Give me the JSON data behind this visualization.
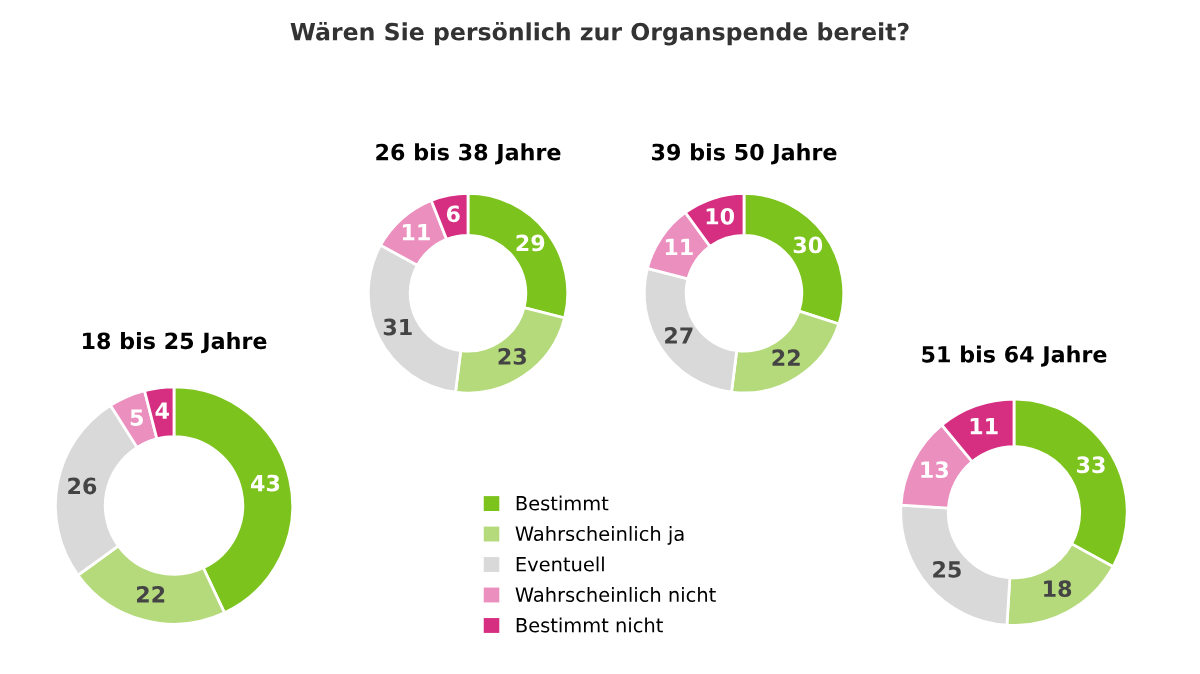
{
  "chart_data": [
    {
      "type": "donut",
      "title": "18 bis 25 Jahre",
      "annotations": [
        "Wären Sie persönlich zur Organspende bereit?"
      ],
      "legend": "bottom",
      "data_labels": true,
      "categories": [
        "Bestimmt",
        "Wahrscheinlich ja",
        "Eventuell",
        "Wahrscheinlich nicht",
        "Bestimmt nicht"
      ],
      "values": [
        43,
        22,
        26,
        5,
        4
      ],
      "colors": [
        "#7dc31e",
        "#b5da7c",
        "#d9d9d9",
        "#eb8fbf",
        "#d62f82"
      ]
    },
    {
      "type": "donut",
      "title": "26 bis 38 Jahre",
      "data_labels": true,
      "values": [
        29,
        23,
        31,
        11,
        6
      ],
      "colors": [
        "#7dc31e",
        "#b5da7c",
        "#d9d9d9",
        "#eb8fbf",
        "#d62f82"
      ]
    },
    {
      "type": "donut",
      "title": "39 bis 50 Jahre",
      "data_labels": true,
      "values": [
        30,
        22,
        27,
        11,
        10
      ],
      "colors": [
        "#7dc31e",
        "#b5da7c",
        "#d9d9d9",
        "#eb8fbf",
        "#d62f82"
      ]
    },
    {
      "type": "donut",
      "title": "51 bis 64 Jahre",
      "data_labels": true,
      "values": [
        33,
        18,
        25,
        13,
        11
      ],
      "colors": [
        "#7dc31e",
        "#b5da7c",
        "#d9d9d9",
        "#eb8fbf",
        "#d62f82"
      ]
    }
  ]
}
